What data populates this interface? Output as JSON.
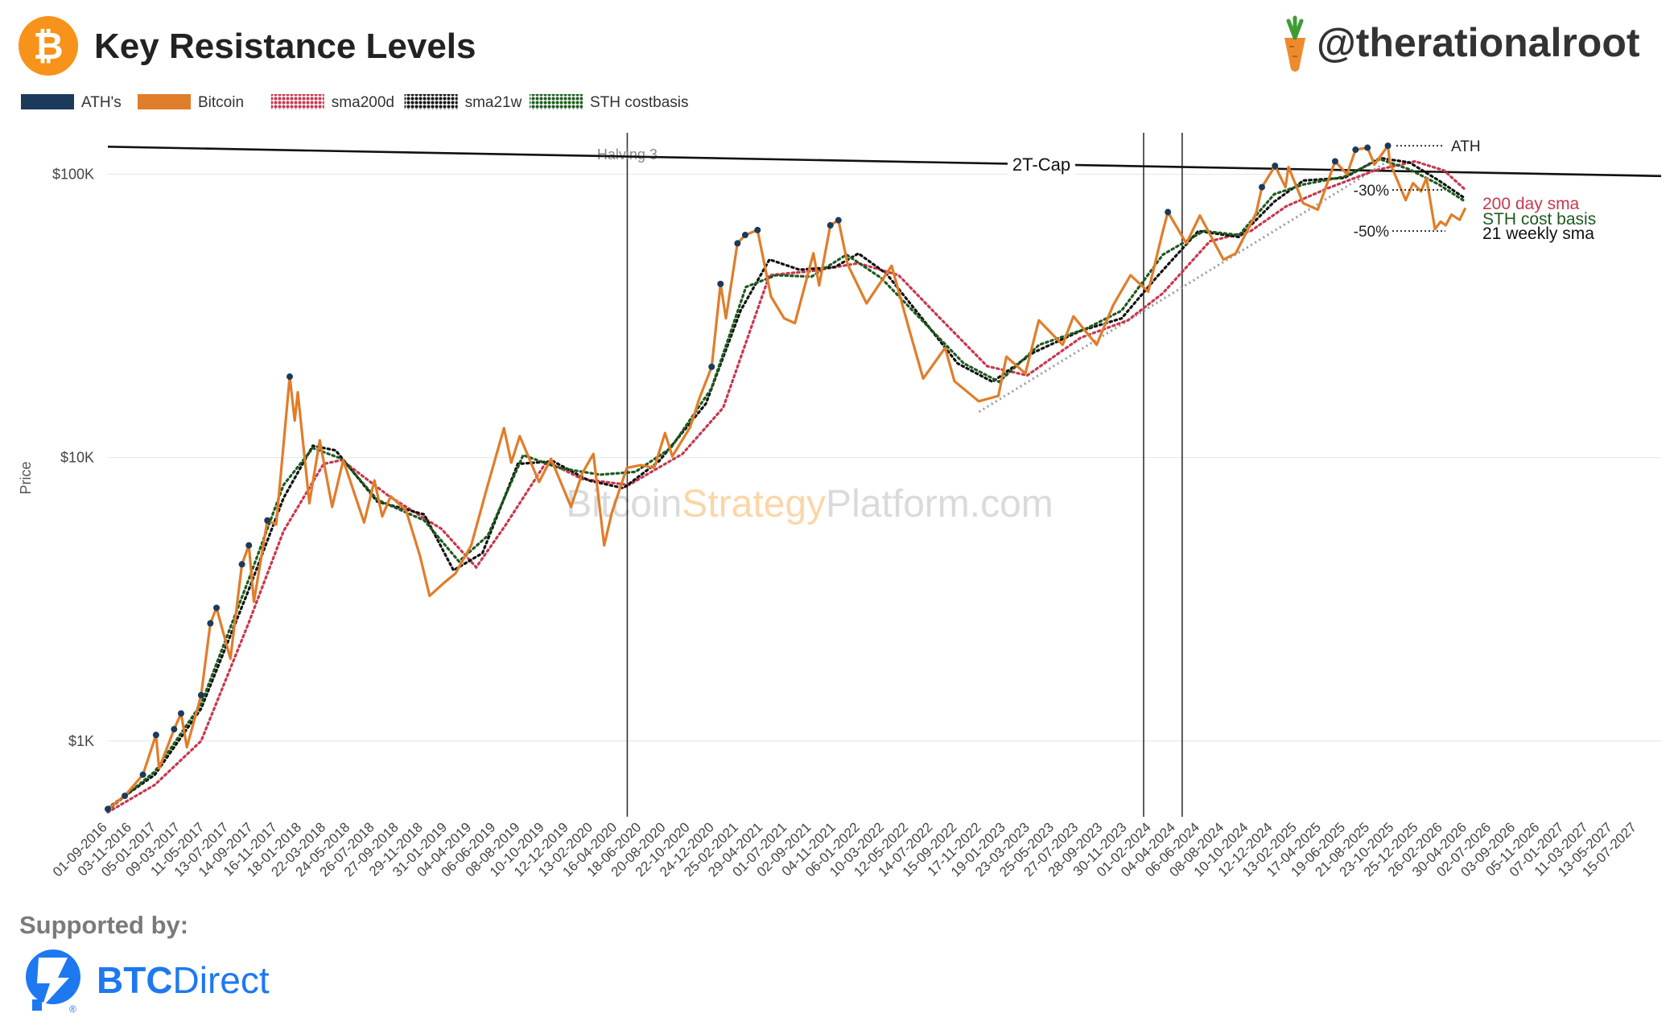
{
  "header": {
    "title": "Key Resistance Levels",
    "handle": "@therationalroot",
    "logo_icon": "bitcoin-logo-icon",
    "handle_icon": "carrot-icon",
    "brand_color": "#F7931A"
  },
  "watermark": {
    "part1": "Bitcoin",
    "part2": "Strategy",
    "part3": "Platform.com"
  },
  "footer": {
    "supported_by": "Supported by:",
    "sponsor_bold": "BTC",
    "sponsor_light": "Direct",
    "sponsor_icon": "btcdirect-logo-icon",
    "sponsor_color": "#1E78F0"
  },
  "chart_data": {
    "type": "line",
    "y_scale": "log",
    "ylabel": "Price",
    "ylim": [
      540,
      140000
    ],
    "xlim": [
      "2016-09-01",
      "2027-09-15"
    ],
    "yticks": [
      {
        "value": 1000,
        "label": "$1K"
      },
      {
        "value": 10000,
        "label": "$10K"
      },
      {
        "value": 100000,
        "label": "$100K"
      }
    ],
    "xticks": [
      "01-09-2016",
      "03-11-2016",
      "05-01-2017",
      "09-03-2017",
      "11-05-2017",
      "13-07-2017",
      "14-09-2017",
      "16-11-2017",
      "18-01-2018",
      "22-03-2018",
      "24-05-2018",
      "26-07-2018",
      "27-09-2018",
      "29-11-2018",
      "31-01-2019",
      "04-04-2019",
      "06-06-2019",
      "08-08-2019",
      "10-10-2019",
      "12-12-2019",
      "13-02-2020",
      "16-04-2020",
      "18-06-2020",
      "20-08-2020",
      "22-10-2020",
      "24-12-2020",
      "25-02-2021",
      "29-04-2021",
      "01-07-2021",
      "02-09-2021",
      "04-11-2021",
      "06-01-2022",
      "10-03-2022",
      "12-05-2022",
      "14-07-2022",
      "15-09-2022",
      "17-11-2022",
      "19-01-2023",
      "23-03-2023",
      "25-05-2023",
      "27-07-2023",
      "28-09-2023",
      "30-11-2023",
      "01-02-2024",
      "04-04-2024",
      "06-06-2024",
      "08-08-2024",
      "10-10-2024",
      "12-12-2024",
      "13-02-2025",
      "17-04-2025",
      "19-06-2025",
      "21-08-2025",
      "23-10-2025",
      "25-12-2025",
      "26-02-2026",
      "30-04-2026",
      "02-07-2026",
      "03-09-2026",
      "05-11-2026",
      "07-01-2027",
      "11-03-2027",
      "13-05-2027",
      "15-07-2027"
    ],
    "legend": {
      "placement": "top-left",
      "items": [
        {
          "label": "ATH's",
          "color": "#1B3A5C",
          "style": "solid"
        },
        {
          "label": "Bitcoin",
          "color": "#E07D2A",
          "style": "solid"
        },
        {
          "label": "sma200d",
          "color": "#C8384F",
          "style": "dotted"
        },
        {
          "label": "sma21w",
          "color": "#111111",
          "style": "dotted"
        },
        {
          "label": "STH costbasis",
          "color": "#1E5A1E",
          "style": "dotted"
        }
      ]
    },
    "vlines": [
      {
        "x": "2020-05-11",
        "label": "Halving 3"
      },
      {
        "x": "2024-01-11",
        "label": ""
      },
      {
        "x": "2024-04-20",
        "label": ""
      }
    ],
    "two_t_cap": {
      "label": "2T-Cap",
      "start": [
        "2016-09-01",
        125000
      ],
      "end": [
        "2027-09-15",
        98500
      ]
    },
    "trendline": {
      "start": [
        "2022-11-10",
        14500
      ],
      "end": [
        "2025-10-10",
        112000
      ]
    },
    "annotations": [
      {
        "label": "ATH",
        "y": 126000
      },
      {
        "label": "-30%",
        "y": 88000
      },
      {
        "label": "-50%",
        "y": 63000
      }
    ],
    "right_labels": [
      {
        "label": "200 day sma",
        "color": "#C8384F"
      },
      {
        "label": "STH cost basis",
        "color": "#1E5A1E"
      },
      {
        "label": "21 weekly sma",
        "color": "#111111"
      }
    ],
    "series": [
      {
        "name": "Bitcoin",
        "color": "#E07D2A",
        "points": [
          [
            "2016-09-01",
            575
          ],
          [
            "2016-10-15",
            640
          ],
          [
            "2016-12-01",
            760
          ],
          [
            "2017-01-04",
            1050
          ],
          [
            "2017-01-12",
            800
          ],
          [
            "2017-02-20",
            1100
          ],
          [
            "2017-03-10",
            1250
          ],
          [
            "2017-03-25",
            950
          ],
          [
            "2017-05-01",
            1450
          ],
          [
            "2017-05-25",
            2600
          ],
          [
            "2017-06-10",
            2950
          ],
          [
            "2017-07-16",
            1950
          ],
          [
            "2017-08-15",
            4200
          ],
          [
            "2017-09-02",
            4900
          ],
          [
            "2017-09-15",
            3100
          ],
          [
            "2017-10-20",
            6000
          ],
          [
            "2017-11-12",
            5800
          ],
          [
            "2017-12-17",
            19300
          ],
          [
            "2017-12-30",
            13500
          ],
          [
            "2018-01-07",
            17000
          ],
          [
            "2018-02-06",
            6900
          ],
          [
            "2018-03-05",
            11500
          ],
          [
            "2018-04-06",
            6700
          ],
          [
            "2018-05-05",
            9800
          ],
          [
            "2018-06-28",
            5900
          ],
          [
            "2018-07-25",
            8300
          ],
          [
            "2018-08-14",
            6200
          ],
          [
            "2018-09-05",
            7300
          ],
          [
            "2018-10-15",
            6500
          ],
          [
            "2018-11-20",
            4500
          ],
          [
            "2018-12-15",
            3250
          ],
          [
            "2019-01-20",
            3600
          ],
          [
            "2019-02-20",
            3900
          ],
          [
            "2019-04-02",
            4900
          ],
          [
            "2019-05-15",
            8000
          ],
          [
            "2019-06-26",
            12700
          ],
          [
            "2019-07-15",
            9600
          ],
          [
            "2019-08-06",
            11900
          ],
          [
            "2019-09-25",
            8200
          ],
          [
            "2019-10-26",
            9900
          ],
          [
            "2019-12-17",
            6700
          ],
          [
            "2020-01-15",
            8800
          ],
          [
            "2020-02-13",
            10300
          ],
          [
            "2020-03-12",
            4900
          ],
          [
            "2020-04-01",
            6400
          ],
          [
            "2020-05-10",
            9200
          ],
          [
            "2020-06-15",
            9400
          ],
          [
            "2020-07-20",
            9200
          ],
          [
            "2020-08-17",
            12200
          ],
          [
            "2020-09-05",
            10100
          ],
          [
            "2020-10-21",
            12800
          ],
          [
            "2020-11-15",
            16300
          ],
          [
            "2020-12-16",
            20900
          ],
          [
            "2021-01-08",
            41000
          ],
          [
            "2021-01-22",
            31000
          ],
          [
            "2021-02-21",
            57000
          ],
          [
            "2021-03-13",
            61000
          ],
          [
            "2021-04-14",
            63500
          ],
          [
            "2021-05-19",
            37000
          ],
          [
            "2021-06-22",
            31000
          ],
          [
            "2021-07-20",
            29800
          ],
          [
            "2021-09-06",
            52600
          ],
          [
            "2021-09-21",
            40500
          ],
          [
            "2021-10-20",
            66000
          ],
          [
            "2021-11-10",
            68800
          ],
          [
            "2021-12-04",
            48000
          ],
          [
            "2022-01-22",
            35000
          ],
          [
            "2022-03-28",
            47500
          ],
          [
            "2022-05-12",
            28500
          ],
          [
            "2022-06-18",
            19000
          ],
          [
            "2022-08-14",
            24400
          ],
          [
            "2022-09-07",
            18600
          ],
          [
            "2022-11-09",
            15800
          ],
          [
            "2022-12-30",
            16500
          ],
          [
            "2023-01-20",
            22700
          ],
          [
            "2023-03-10",
            19800
          ],
          [
            "2023-04-14",
            30500
          ],
          [
            "2023-06-15",
            25000
          ],
          [
            "2023-07-13",
            31500
          ],
          [
            "2023-09-11",
            25000
          ],
          [
            "2023-10-24",
            34500
          ],
          [
            "2023-12-08",
            44000
          ],
          [
            "2024-01-23",
            38500
          ],
          [
            "2024-02-28",
            61500
          ],
          [
            "2024-03-14",
            73500
          ],
          [
            "2024-05-01",
            57000
          ],
          [
            "2024-06-05",
            71500
          ],
          [
            "2024-08-05",
            50000
          ],
          [
            "2024-09-06",
            52500
          ],
          [
            "2024-10-29",
            73000
          ],
          [
            "2024-11-13",
            90000
          ],
          [
            "2024-12-17",
            107000
          ],
          [
            "2025-01-13",
            90000
          ],
          [
            "2025-01-21",
            106000
          ],
          [
            "2025-02-28",
            79000
          ],
          [
            "2025-04-07",
            75000
          ],
          [
            "2025-05-22",
            111000
          ],
          [
            "2025-06-22",
            100000
          ],
          [
            "2025-07-14",
            122000
          ],
          [
            "2025-08-14",
            124000
          ],
          [
            "2025-09-01",
            108000
          ],
          [
            "2025-10-06",
            126000
          ],
          [
            "2025-10-11",
            110000
          ],
          [
            "2025-11-21",
            81000
          ],
          [
            "2025-12-10",
            93000
          ],
          [
            "2025-12-31",
            87000
          ],
          [
            "2026-01-14",
            97000
          ],
          [
            "2026-02-05",
            64000
          ],
          [
            "2026-02-20",
            68000
          ],
          [
            "2026-03-05",
            66000
          ],
          [
            "2026-03-20",
            72000
          ],
          [
            "2026-04-10",
            69000
          ],
          [
            "2026-04-25",
            76000
          ]
        ]
      },
      {
        "name": "sma200d",
        "color": "#C8384F",
        "points": [
          [
            "2016-09-01",
            560
          ],
          [
            "2017-01-01",
            700
          ],
          [
            "2017-05-01",
            1000
          ],
          [
            "2017-09-01",
            2600
          ],
          [
            "2017-12-01",
            5500
          ],
          [
            "2018-03-15",
            9500
          ],
          [
            "2018-05-01",
            9800
          ],
          [
            "2018-09-01",
            7300
          ],
          [
            "2019-01-15",
            5600
          ],
          [
            "2019-04-15",
            4100
          ],
          [
            "2019-07-01",
            5800
          ],
          [
            "2019-10-15",
            9700
          ],
          [
            "2020-01-15",
            8400
          ],
          [
            "2020-05-15",
            8000
          ],
          [
            "2020-10-01",
            10300
          ],
          [
            "2021-01-15",
            15000
          ],
          [
            "2021-05-15",
            44000
          ],
          [
            "2021-09-01",
            45500
          ],
          [
            "2022-01-01",
            48500
          ],
          [
            "2022-04-15",
            44000
          ],
          [
            "2022-08-01",
            31000
          ],
          [
            "2022-12-01",
            21000
          ],
          [
            "2023-03-15",
            19500
          ],
          [
            "2023-08-01",
            26500
          ],
          [
            "2023-12-01",
            30500
          ],
          [
            "2024-03-01",
            38000
          ],
          [
            "2024-07-01",
            58000
          ],
          [
            "2024-10-15",
            63000
          ],
          [
            "2025-01-15",
            77000
          ],
          [
            "2025-05-01",
            89000
          ],
          [
            "2025-09-01",
            103000
          ],
          [
            "2025-12-15",
            111000
          ],
          [
            "2026-03-01",
            103000
          ],
          [
            "2026-04-25",
            88000
          ]
        ]
      },
      {
        "name": "sma21w",
        "color": "#111111",
        "points": [
          [
            "2016-09-01",
            580
          ],
          [
            "2017-01-01",
            760
          ],
          [
            "2017-05-01",
            1300
          ],
          [
            "2017-09-01",
            3400
          ],
          [
            "2017-12-01",
            7200
          ],
          [
            "2018-02-15",
            11000
          ],
          [
            "2018-04-15",
            10600
          ],
          [
            "2018-08-01",
            7000
          ],
          [
            "2018-12-01",
            6300
          ],
          [
            "2019-02-15",
            4000
          ],
          [
            "2019-05-01",
            4600
          ],
          [
            "2019-08-01",
            9500
          ],
          [
            "2019-11-01",
            9700
          ],
          [
            "2020-02-01",
            8300
          ],
          [
            "2020-05-01",
            7800
          ],
          [
            "2020-08-01",
            9700
          ],
          [
            "2020-12-01",
            15500
          ],
          [
            "2021-03-01",
            33000
          ],
          [
            "2021-05-15",
            50000
          ],
          [
            "2021-08-01",
            46000
          ],
          [
            "2021-11-01",
            47000
          ],
          [
            "2022-01-01",
            52500
          ],
          [
            "2022-03-15",
            44500
          ],
          [
            "2022-06-15",
            31000
          ],
          [
            "2022-09-15",
            21500
          ],
          [
            "2022-12-15",
            18500
          ],
          [
            "2023-04-01",
            23500
          ],
          [
            "2023-08-01",
            28000
          ],
          [
            "2023-11-15",
            31000
          ],
          [
            "2024-02-15",
            43500
          ],
          [
            "2024-06-01",
            63000
          ],
          [
            "2024-09-15",
            60000
          ],
          [
            "2024-12-15",
            80000
          ],
          [
            "2025-03-01",
            95000
          ],
          [
            "2025-06-15",
            97000
          ],
          [
            "2025-09-15",
            114000
          ],
          [
            "2025-12-01",
            110000
          ],
          [
            "2026-02-15",
            95000
          ],
          [
            "2026-04-25",
            82000
          ]
        ]
      },
      {
        "name": "STH costbasis",
        "color": "#1E5A1E",
        "points": [
          [
            "2016-09-01",
            570
          ],
          [
            "2017-01-01",
            780
          ],
          [
            "2017-05-01",
            1350
          ],
          [
            "2017-09-01",
            3700
          ],
          [
            "2017-12-01",
            8000
          ],
          [
            "2018-02-15",
            10800
          ],
          [
            "2018-05-01",
            9900
          ],
          [
            "2018-08-01",
            7100
          ],
          [
            "2018-12-01",
            6000
          ],
          [
            "2019-03-01",
            4300
          ],
          [
            "2019-05-15",
            5300
          ],
          [
            "2019-08-15",
            10200
          ],
          [
            "2019-11-15",
            9200
          ],
          [
            "2020-03-01",
            8700
          ],
          [
            "2020-06-01",
            8900
          ],
          [
            "2020-09-01",
            10800
          ],
          [
            "2020-12-15",
            17500
          ],
          [
            "2021-03-15",
            40000
          ],
          [
            "2021-06-01",
            44000
          ],
          [
            "2021-09-01",
            43500
          ],
          [
            "2021-12-01",
            52000
          ],
          [
            "2022-03-01",
            43000
          ],
          [
            "2022-06-15",
            30500
          ],
          [
            "2022-10-01",
            21500
          ],
          [
            "2023-01-01",
            18500
          ],
          [
            "2023-04-15",
            25000
          ],
          [
            "2023-08-15",
            28500
          ],
          [
            "2023-11-15",
            33000
          ],
          [
            "2024-03-01",
            52000
          ],
          [
            "2024-06-15",
            63000
          ],
          [
            "2024-09-15",
            61000
          ],
          [
            "2024-12-15",
            85000
          ],
          [
            "2025-03-01",
            92000
          ],
          [
            "2025-06-15",
            98000
          ],
          [
            "2025-09-15",
            113000
          ],
          [
            "2025-12-01",
            104000
          ],
          [
            "2026-02-15",
            92000
          ],
          [
            "2026-04-25",
            80000
          ]
        ]
      }
    ]
  }
}
